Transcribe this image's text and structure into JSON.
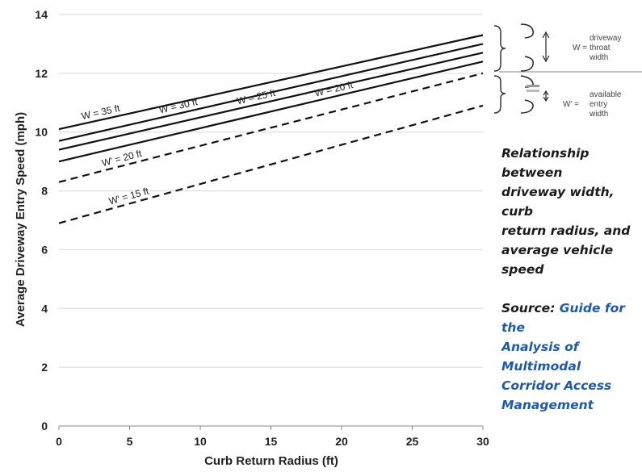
{
  "chart_data": {
    "type": "line",
    "xlabel": "Curb Return Radius (ft)",
    "ylabel": "Average Driveway Entry Speed (mph)",
    "xlim": [
      0,
      30
    ],
    "ylim": [
      0,
      14
    ],
    "xticks": [
      0,
      5,
      10,
      15,
      20,
      25,
      30
    ],
    "yticks": [
      0,
      2,
      4,
      6,
      8,
      10,
      12,
      14
    ],
    "grid": "horizontal",
    "series": [
      {
        "name": "W = 35 ft",
        "style": "solid",
        "x": [
          0,
          30
        ],
        "y": [
          10.1,
          13.3
        ]
      },
      {
        "name": "W = 30 ft",
        "style": "solid",
        "x": [
          0,
          30
        ],
        "y": [
          9.7,
          13.0
        ]
      },
      {
        "name": "W = 25 ft",
        "style": "solid",
        "x": [
          0,
          30
        ],
        "y": [
          9.4,
          12.7
        ]
      },
      {
        "name": "W = 20 ft",
        "style": "solid",
        "x": [
          0,
          30
        ],
        "y": [
          9.0,
          12.4
        ]
      },
      {
        "name": "W' = 20 ft",
        "style": "dashed",
        "x": [
          0,
          30
        ],
        "y": [
          8.3,
          12.0
        ]
      },
      {
        "name": "W' = 15 ft",
        "style": "dashed",
        "x": [
          0,
          30
        ],
        "y": [
          6.9,
          10.9
        ]
      }
    ],
    "annotations": {
      "w_symbol": "W =",
      "w_text": [
        "driveway",
        "throat",
        "width"
      ],
      "wp_symbol": "W' =",
      "wp_text": [
        "available",
        "entry",
        "width"
      ]
    }
  },
  "caption": {
    "description": "Relationship between\ndriveway width, curb\nreturn radius, and\naverage vehicle speed",
    "source_prefix": "Source: ",
    "source_link": "Guide for the\nAnalysis of Multimodal\nCorridor Access\nManagement"
  },
  "colors": {
    "line": "#111111",
    "grid": "#d9d9d9",
    "axis": "#888888",
    "link": "#1f5aa6"
  }
}
